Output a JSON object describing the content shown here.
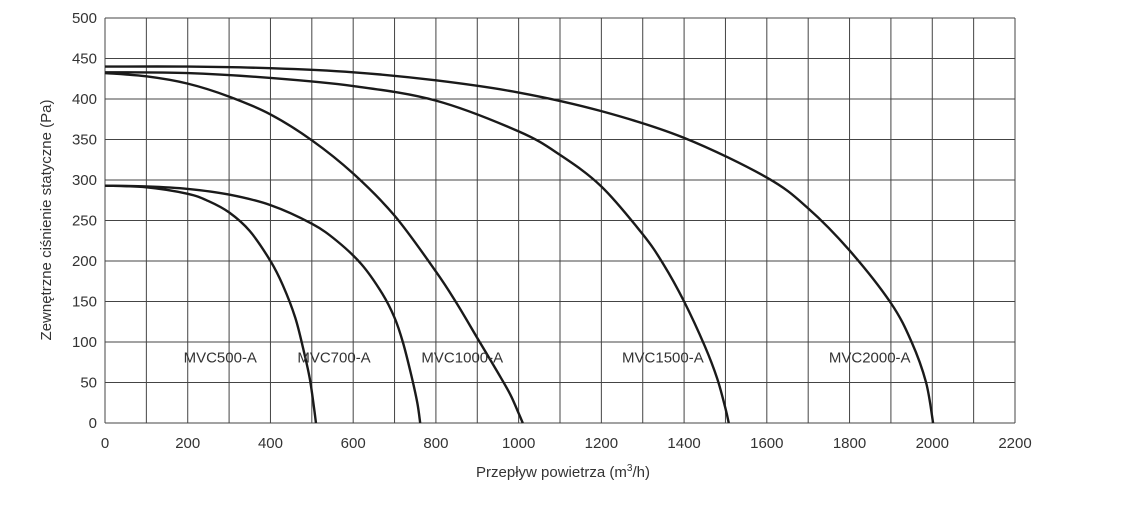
{
  "chart_data": {
    "type": "line",
    "title": "",
    "xlabel": "Przepływ powietrza (m",
    "xlabel_sup": "3",
    "xlabel_tail": "/h)",
    "ylabel": "Zewnętrzne ciśnienie statyczne (Pa)",
    "xlim": [
      0,
      2200
    ],
    "ylim": [
      0,
      500
    ],
    "x_ticks": [
      "0",
      "200",
      "400",
      "600",
      "800",
      "1000",
      "1200",
      "1400",
      "1600",
      "1800",
      "2000",
      "2200"
    ],
    "y_ticks": [
      "0",
      "50",
      "100",
      "150",
      "200",
      "250",
      "300",
      "350",
      "400",
      "450",
      "500"
    ],
    "grid": true,
    "series": [
      {
        "name": "MVC500-A",
        "label_at": [
          190,
          75
        ],
        "x": [
          0,
          100,
          200,
          250,
          300,
          350,
          400,
          430,
          460,
          480,
          495,
          505,
          510
        ],
        "y": [
          293,
          291,
          283,
          274,
          260,
          237,
          200,
          170,
          130,
          90,
          55,
          20,
          0
        ]
      },
      {
        "name": "MVC700-A",
        "label_at": [
          465,
          75
        ],
        "x": [
          0,
          100,
          200,
          300,
          400,
          500,
          560,
          620,
          670,
          700,
          720,
          740,
          755,
          762
        ],
        "y": [
          293,
          292,
          289,
          282,
          269,
          246,
          225,
          196,
          160,
          130,
          100,
          60,
          25,
          0
        ]
      },
      {
        "name": "MVC1000-A",
        "label_at": [
          765,
          75
        ],
        "x": [
          0,
          100,
          200,
          300,
          400,
          500,
          600,
          700,
          800,
          850,
          900,
          950,
          980,
          1000,
          1010
        ],
        "y": [
          432,
          428,
          419,
          403,
          381,
          349,
          308,
          256,
          187,
          148,
          105,
          62,
          35,
          12,
          0
        ]
      },
      {
        "name": "MVC1500-A",
        "label_at": [
          1250,
          75
        ],
        "x": [
          0,
          200,
          400,
          600,
          800,
          1000,
          1100,
          1200,
          1300,
          1350,
          1400,
          1450,
          1480,
          1500,
          1508
        ],
        "y": [
          433,
          432,
          426,
          416,
          398,
          360,
          331,
          292,
          233,
          196,
          150,
          95,
          55,
          18,
          0
        ]
      },
      {
        "name": "MVC2000-A",
        "label_at": [
          1750,
          75
        ],
        "x": [
          0,
          200,
          400,
          600,
          800,
          1000,
          1200,
          1400,
          1600,
          1700,
          1800,
          1900,
          1950,
          1985,
          2002
        ],
        "y": [
          440,
          440,
          438,
          433,
          423,
          408,
          385,
          352,
          303,
          265,
          213,
          148,
          100,
          50,
          0
        ]
      }
    ],
    "colors": {
      "curve": "#1a1a1a",
      "grid": "#444444",
      "text": "#333333"
    }
  }
}
